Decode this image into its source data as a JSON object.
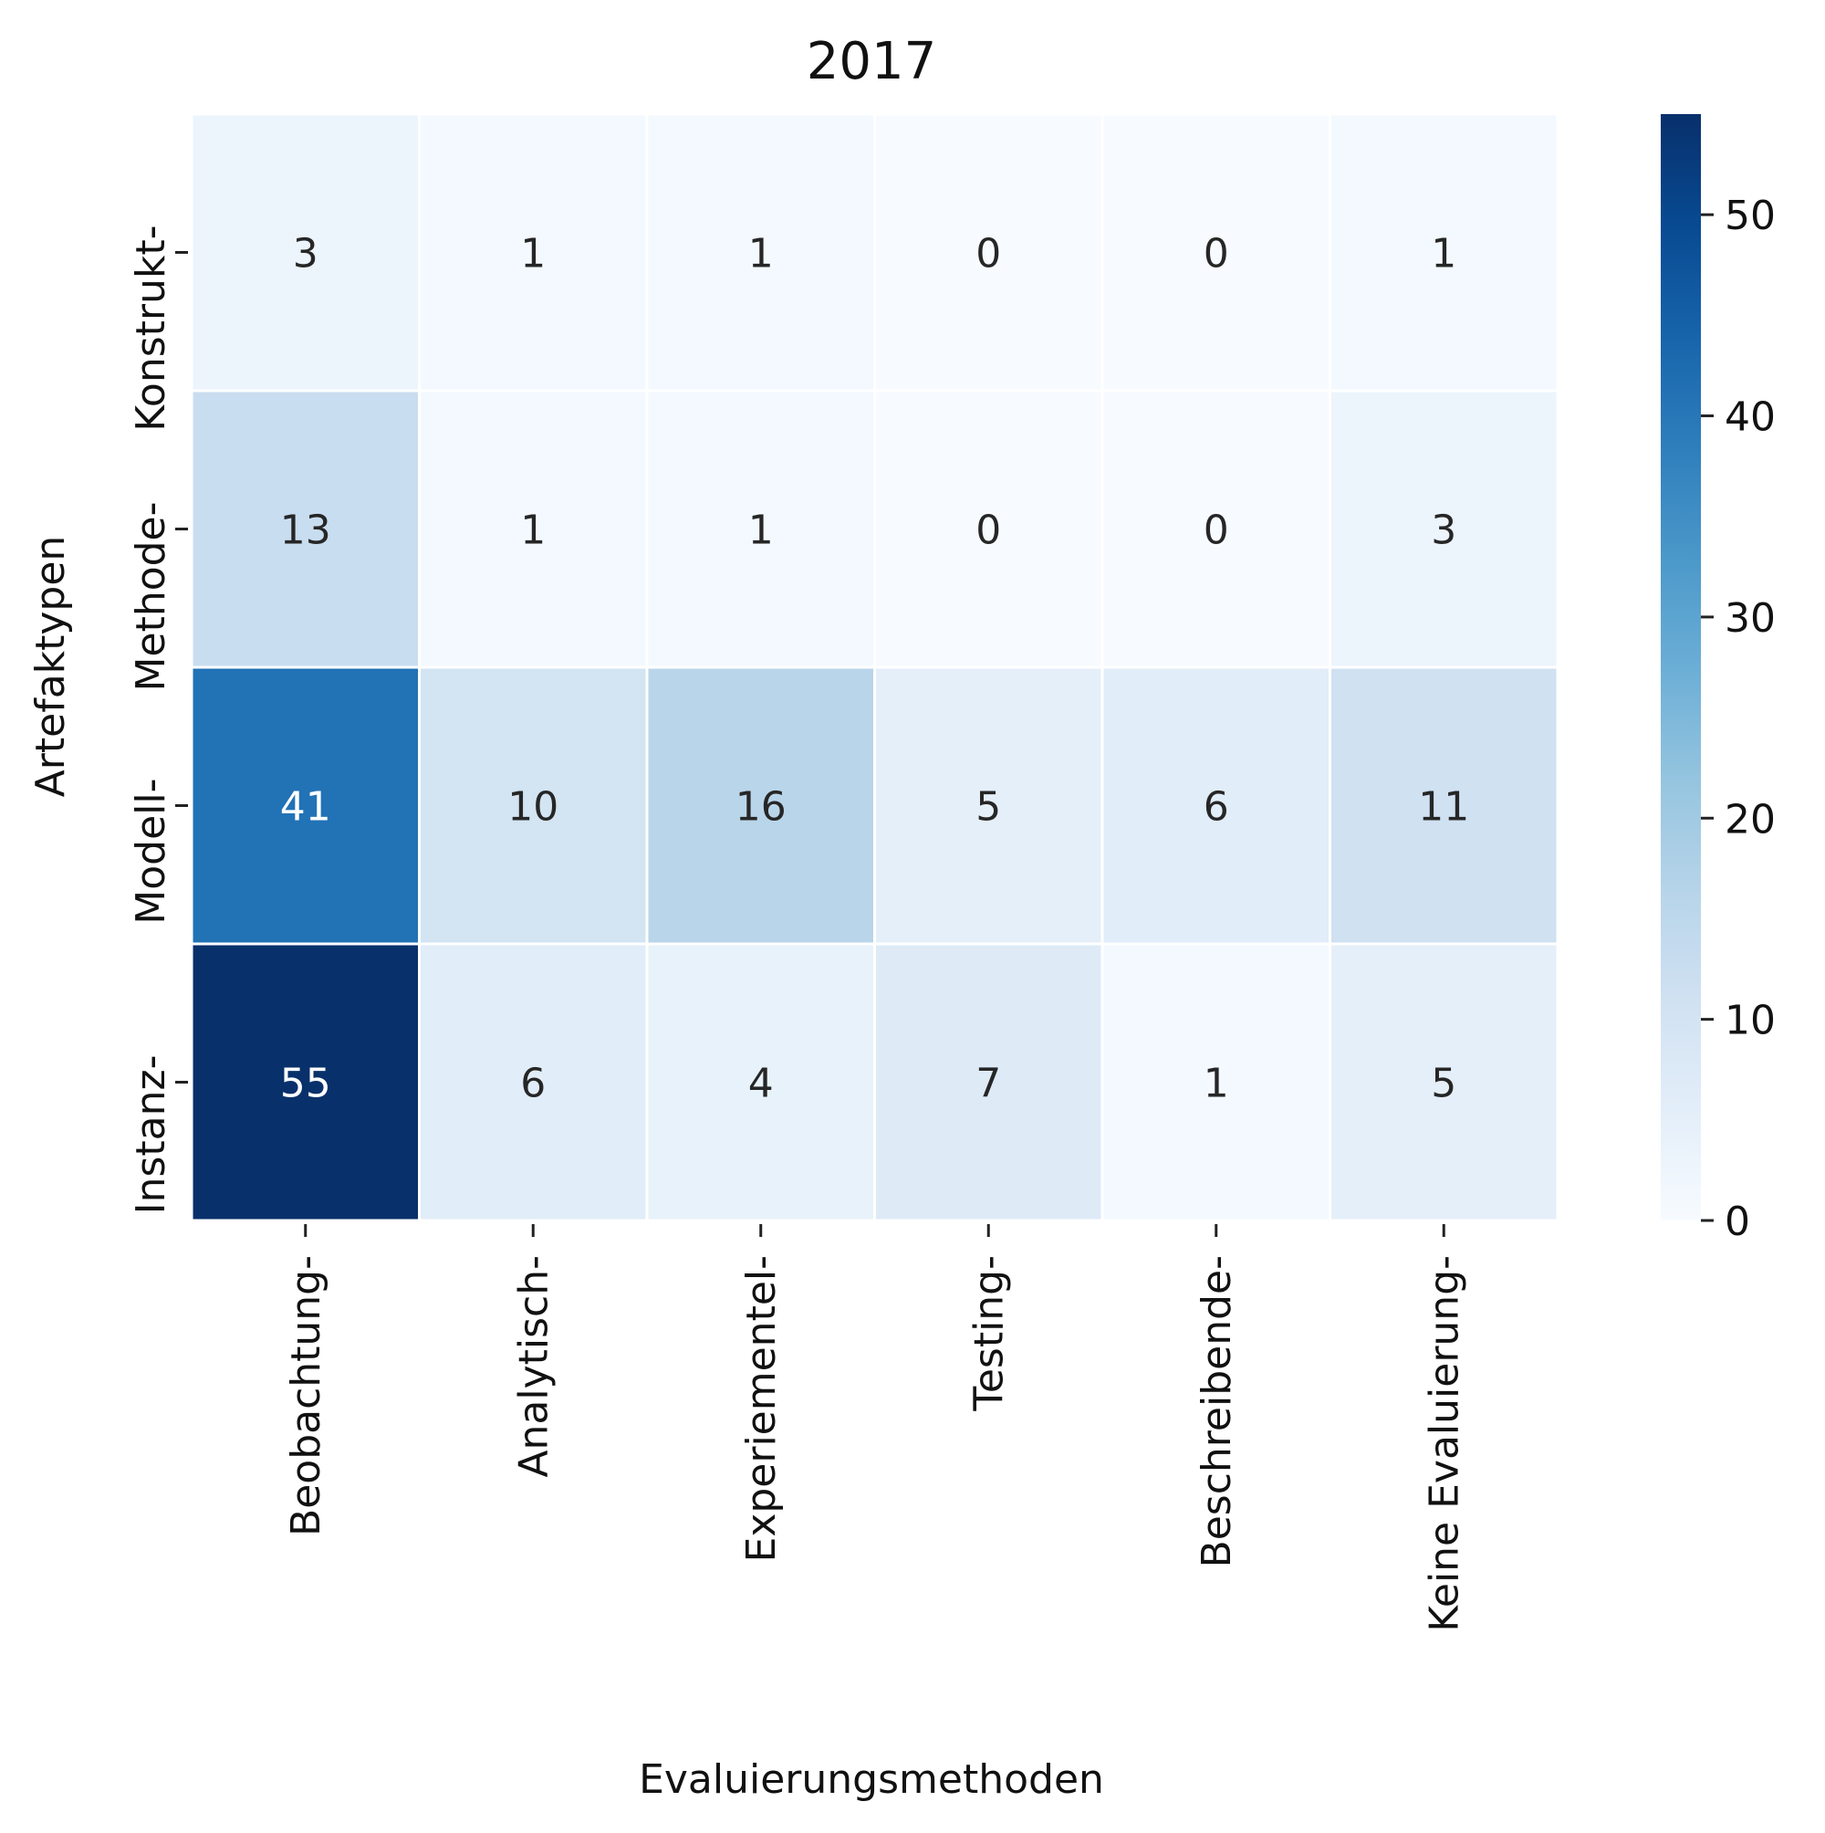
{
  "chart_data": {
    "type": "heatmap",
    "title": "2017",
    "xlabel": "Evaluierungsmethoden",
    "ylabel": "Artefaktypen",
    "x_categories": [
      "Beobachtung-",
      "Analytisch-",
      "Experiementel-",
      "Testing-",
      "Beschreibende-",
      "Keine Evaluierung-"
    ],
    "y_categories": [
      "Konstrukt-",
      "Methode-",
      "Modell-",
      "Instanz-"
    ],
    "values": [
      [
        3,
        1,
        1,
        0,
        0,
        1
      ],
      [
        13,
        1,
        1,
        0,
        0,
        3
      ],
      [
        41,
        10,
        16,
        5,
        6,
        11
      ],
      [
        55,
        6,
        4,
        7,
        1,
        5
      ]
    ],
    "colorbar": {
      "min": 0,
      "max": 55,
      "ticks": [
        "0",
        "10",
        "20",
        "30",
        "40",
        "50"
      ],
      "colormap": "Blues"
    },
    "colors": {
      "low": "#f7fbff",
      "high": "#08306b",
      "text_dark": "#262626",
      "text_light": "#ffffff"
    }
  }
}
